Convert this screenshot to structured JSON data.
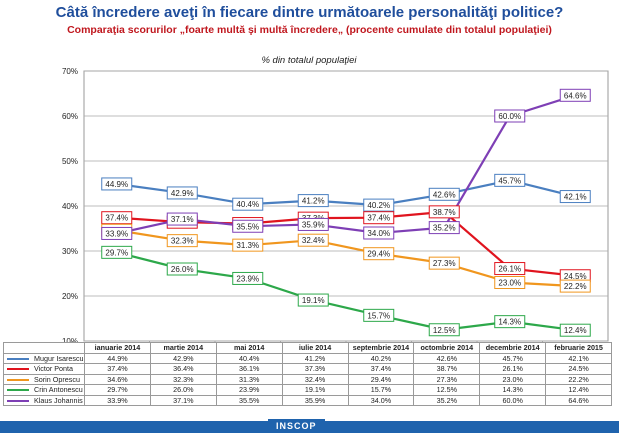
{
  "title": "Câtă încredere aveţi în fiecare dintre următoarele personalităţi politice?",
  "subtitle": "Comparaţia scorurilor „foarte multă şi multă încredere„ (procente cumulate din totalul populaţiei)",
  "logo_text": "INSCOP",
  "chart_data": {
    "type": "line",
    "unit_label": "% din totalul populaţiei",
    "categories": [
      "ianuarie 2014",
      "martie 2014",
      "mai 2014",
      "iulie 2014",
      "septembrie 2014",
      "octombrie 2014",
      "decembrie 2014",
      "februarie 2015"
    ],
    "ylim": [
      10,
      70
    ],
    "yticks": [
      "10%",
      "20%",
      "30%",
      "40%",
      "50%",
      "60%",
      "70%"
    ],
    "series": [
      {
        "name": "Mugur Isarescu",
        "color": "#4a7fc0",
        "values": [
          44.9,
          42.9,
          40.4,
          41.2,
          40.2,
          42.6,
          45.7,
          42.1
        ],
        "labels": [
          "44.9%",
          "42.9%",
          "40.4%",
          "41.2%",
          "40.2%",
          "42.6%",
          "45.7%",
          "42.1%"
        ],
        "table": [
          "44.9%",
          "42.9%",
          "40.4%",
          "41.2%",
          "40.2%",
          "42.6%",
          "45.7%",
          "42.1%"
        ]
      },
      {
        "name": "Victor Ponta",
        "color": "#e0141e",
        "values": [
          37.4,
          36.4,
          36.1,
          37.3,
          37.4,
          38.7,
          26.1,
          24.5
        ],
        "labels": [
          "37.4%",
          "36.4%",
          "36.1%",
          "37.3%",
          "37.4%",
          "38.7%",
          "26.1%",
          "24.5%"
        ],
        "table": [
          "37.4%",
          "36.4%",
          "36.1%",
          "37.3%",
          "37.4%",
          "38.7%",
          "26.1%",
          "24.5%"
        ]
      },
      {
        "name": "Sorin Oprescu",
        "color": "#f0961e",
        "values": [
          34.6,
          32.3,
          31.3,
          32.4,
          29.4,
          27.3,
          23.0,
          22.2
        ],
        "labels": [
          "34.6%",
          "32.3%",
          "31.3%",
          "32.4%",
          "29.4%",
          "27.3%",
          "23.0%",
          "22.2%"
        ],
        "table": [
          "34.6%",
          "32.3%",
          "31.3%",
          "32.4%",
          "29.4%",
          "27.3%",
          "23.0%",
          "22.2%"
        ]
      },
      {
        "name": "Crin Antonescu",
        "color": "#2da84a",
        "values": [
          29.7,
          26.0,
          23.9,
          19.1,
          15.7,
          12.5,
          14.3,
          12.4
        ],
        "labels": [
          "29.7%",
          "26.0%",
          "23.9%",
          "19.1%",
          "15.7%",
          "12.5%",
          "14.3%",
          "12.4%"
        ],
        "table": [
          "29.7%",
          "26.0%",
          "23.9%",
          "19.1%",
          "15.7%",
          "12.5%",
          "14.3%",
          "12.4%"
        ]
      },
      {
        "name": "Klaus Johannis",
        "color": "#7e3fb5",
        "values": [
          33.9,
          37.1,
          35.5,
          35.9,
          34.0,
          35.2,
          60.0,
          64.6
        ],
        "labels": [
          "33.9%",
          "37.1%",
          "35.5%",
          "35.9%",
          "34.0%",
          "35.2%",
          "60.0%",
          "64.6%"
        ],
        "table": [
          "33.9%",
          "37.1%",
          "35.5%",
          "35.9%",
          "34.0%",
          "35.2%",
          "60.0%",
          "64.6%"
        ]
      }
    ]
  }
}
